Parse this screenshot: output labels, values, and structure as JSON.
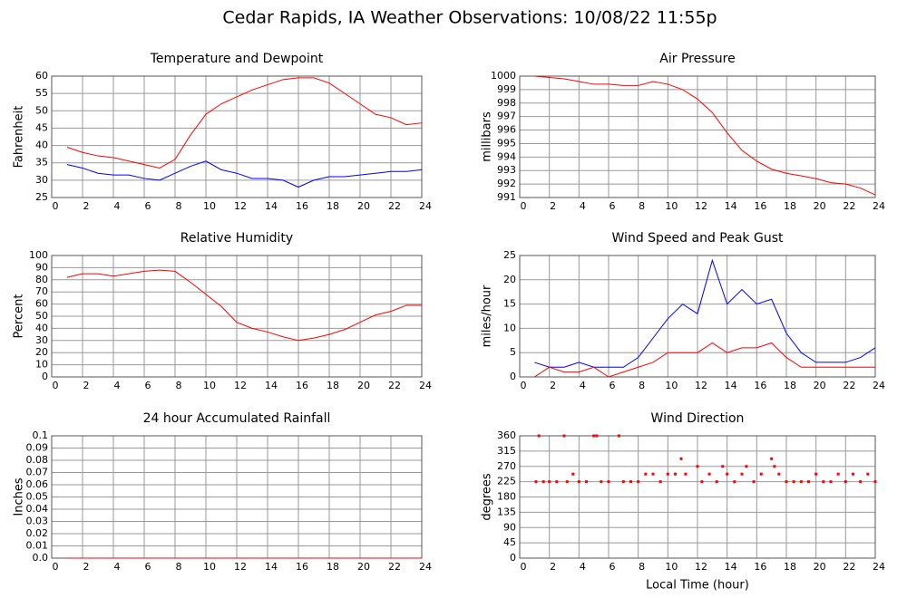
{
  "title": "Cedar Rapids, IA Weather Observations: 10/08/22 11:55p",
  "chart_data": [
    {
      "type": "line",
      "title": "Temperature and Dewpoint",
      "ylabel": "Fahrenheit",
      "xlim": [
        0,
        24
      ],
      "xticks": [
        0,
        2,
        4,
        6,
        8,
        10,
        12,
        14,
        16,
        18,
        20,
        22,
        24
      ],
      "ylim": [
        25,
        60
      ],
      "yticks": [
        25,
        30,
        35,
        40,
        45,
        50,
        55,
        60
      ],
      "grid": true,
      "x": [
        1,
        2,
        3,
        4,
        5,
        6,
        7,
        8,
        9,
        10,
        11,
        12,
        13,
        14,
        15,
        16,
        17,
        18,
        19,
        20,
        21,
        22,
        23,
        24
      ],
      "series": [
        {
          "color": "#ff0000",
          "values": [
            39.5,
            38,
            37,
            36.5,
            35.5,
            34.5,
            33.5,
            36,
            43,
            49,
            52,
            54,
            56,
            57.5,
            59,
            59.5,
            59.5,
            58,
            55,
            52,
            49,
            48,
            46,
            46.5
          ]
        },
        {
          "color": "#0000ff",
          "values": [
            34.5,
            33.5,
            32,
            31.5,
            31.5,
            30.5,
            30,
            32,
            34,
            35.5,
            33,
            32,
            30.5,
            30.5,
            30,
            28,
            30,
            31,
            31,
            31.5,
            32,
            32.5,
            32.5,
            33
          ]
        }
      ]
    },
    {
      "type": "line",
      "title": "Air Pressure",
      "ylabel": "millibars",
      "xlim": [
        0,
        24
      ],
      "xticks": [
        0,
        2,
        4,
        6,
        8,
        10,
        12,
        14,
        16,
        18,
        20,
        22,
        24
      ],
      "ylim": [
        991,
        1000
      ],
      "yticks": [
        991,
        992,
        993,
        994,
        995,
        996,
        997,
        998,
        999,
        1000
      ],
      "grid": true,
      "x": [
        1,
        2,
        3,
        4,
        5,
        6,
        7,
        8,
        9,
        10,
        11,
        12,
        13,
        14,
        15,
        16,
        17,
        18,
        19,
        20,
        21,
        22,
        23,
        24
      ],
      "series": [
        {
          "color": "#ff0000",
          "values": [
            1000,
            999.9,
            999.8,
            999.6,
            999.4,
            999.4,
            999.3,
            999.3,
            999.6,
            999.4,
            999,
            998.3,
            997.3,
            995.8,
            994.5,
            993.7,
            993.1,
            992.8,
            992.6,
            992.4,
            992.1,
            992,
            991.7,
            991.2
          ]
        }
      ]
    },
    {
      "type": "line",
      "title": "Relative Humidity",
      "ylabel": "Percent",
      "xlim": [
        0,
        24
      ],
      "xticks": [
        0,
        2,
        4,
        6,
        8,
        10,
        12,
        14,
        16,
        18,
        20,
        22,
        24
      ],
      "ylim": [
        0,
        100
      ],
      "yticks": [
        0,
        10,
        20,
        30,
        40,
        50,
        60,
        70,
        80,
        90,
        100
      ],
      "grid": true,
      "x": [
        1,
        2,
        3,
        4,
        5,
        6,
        7,
        8,
        9,
        10,
        11,
        12,
        13,
        14,
        15,
        16,
        17,
        18,
        19,
        20,
        21,
        22,
        23,
        24
      ],
      "series": [
        {
          "color": "#ff0000",
          "values": [
            82,
            85,
            85,
            83,
            85,
            87,
            88,
            87,
            78,
            68,
            58,
            45,
            40,
            37,
            33,
            30,
            32,
            35,
            39,
            45,
            51,
            54,
            59,
            59
          ]
        }
      ]
    },
    {
      "type": "line",
      "title": "Wind Speed and Peak Gust",
      "ylabel": "miles/hour",
      "xlim": [
        0,
        24
      ],
      "xticks": [
        0,
        2,
        4,
        6,
        8,
        10,
        12,
        14,
        16,
        18,
        20,
        22,
        24
      ],
      "ylim": [
        0,
        25
      ],
      "yticks": [
        0,
        5,
        10,
        15,
        20,
        25
      ],
      "grid": true,
      "x": [
        1,
        2,
        3,
        4,
        5,
        6,
        7,
        8,
        9,
        10,
        11,
        12,
        13,
        14,
        15,
        16,
        17,
        18,
        19,
        20,
        21,
        22,
        23,
        24
      ],
      "series": [
        {
          "color": "#0000ff",
          "values": [
            3,
            2,
            2,
            3,
            2,
            2,
            2,
            4,
            8,
            12,
            15,
            13,
            24,
            15,
            18,
            15,
            16,
            9,
            5,
            3,
            3,
            3,
            4,
            6
          ]
        },
        {
          "color": "#ff0000",
          "values": [
            0,
            2,
            1,
            1,
            2,
            0,
            1,
            2,
            3,
            5,
            5,
            5,
            7,
            5,
            6,
            6,
            7,
            4,
            2,
            2,
            2,
            2,
            2,
            2
          ]
        }
      ]
    },
    {
      "type": "line",
      "title": "24 hour Accumulated Rainfall",
      "ylabel": "Inches",
      "xlim": [
        0,
        24
      ],
      "xticks": [
        0,
        2,
        4,
        6,
        8,
        10,
        12,
        14,
        16,
        18,
        20,
        22,
        24
      ],
      "ylim": [
        0,
        0.1
      ],
      "yticks": [
        {
          "value": 0,
          "label": "0.0"
        },
        0.01,
        0.02,
        0.03,
        0.04,
        0.05,
        0.06,
        0.07,
        0.08,
        0.09,
        0.1
      ],
      "grid": true,
      "x": [
        1,
        24
      ],
      "series": [
        {
          "color": "#ff0000",
          "values": [
            0,
            0
          ]
        }
      ]
    },
    {
      "type": "scatter",
      "title": "Wind Direction",
      "ylabel": "degrees",
      "xlabel": "Local Time (hour)",
      "xlim": [
        0,
        24
      ],
      "xticks": [
        0,
        2,
        4,
        6,
        8,
        10,
        12,
        14,
        16,
        18,
        20,
        22,
        24
      ],
      "ylim": [
        0,
        360
      ],
      "yticks": [
        0,
        45,
        90,
        135,
        180,
        225,
        270,
        315,
        360
      ],
      "grid": true,
      "x": [
        1.1,
        1.3,
        1.6,
        2,
        2.5,
        3,
        3.2,
        3.6,
        4,
        4.5,
        5,
        5.2,
        5.5,
        6,
        6.7,
        7,
        7.5,
        8,
        8.5,
        9,
        9.5,
        10,
        10.5,
        10.9,
        11.2,
        12,
        12.3,
        12.8,
        13.3,
        13.7,
        14,
        14.5,
        15,
        15.3,
        15.8,
        16.3,
        17,
        17.2,
        17.5,
        18,
        18.5,
        19,
        19.5,
        20,
        20.5,
        21,
        21.5,
        22,
        22.5,
        23,
        23.5,
        24
      ],
      "series": [
        {
          "color": "#ff0000",
          "values": [
            225,
            360,
            225,
            225,
            225,
            360,
            225,
            247.5,
            225,
            225,
            360,
            360,
            225,
            225,
            360,
            225,
            225,
            225,
            247.5,
            247.5,
            225,
            247.5,
            247.5,
            292.5,
            247.5,
            270,
            225,
            247.5,
            225,
            270,
            247.5,
            225,
            247.5,
            270,
            225,
            247.5,
            292.5,
            270,
            247.5,
            225,
            225,
            225,
            225,
            247.5,
            225,
            225,
            247.5,
            225,
            247.5,
            225,
            247.5,
            225
          ]
        }
      ]
    }
  ]
}
